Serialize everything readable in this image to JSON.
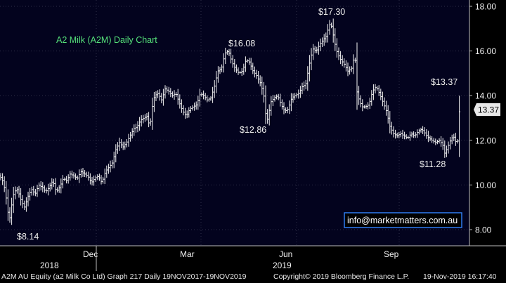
{
  "chart_data": {
    "type": "ohlc",
    "title": "A2 Milk (A2M) Daily Chart",
    "ylim": [
      7.5,
      18.3
    ],
    "y_ticks": [
      "8.00",
      "10.00",
      "12.00",
      "14.00",
      "16.00",
      "18.00"
    ],
    "x_ticks": [
      "Dec",
      "Mar",
      "Jun",
      "Sep"
    ],
    "year_labels": [
      "2018",
      "2019"
    ],
    "last_price": "13.37",
    "annotations": [
      {
        "text": "$8.14",
        "value": 8.14
      },
      {
        "text": "$16.08",
        "value": 16.08
      },
      {
        "text": "$12.86",
        "value": 12.86
      },
      {
        "text": "$17.30",
        "value": 17.3
      },
      {
        "text": "$13.37",
        "value": 13.37
      },
      {
        "text": "$11.28",
        "value": 11.28
      }
    ],
    "watermark": "info@marketmatters.com.au",
    "price_path": [
      [
        0,
        10.4
      ],
      [
        5,
        10.1
      ],
      [
        10,
        9.2
      ],
      [
        13,
        8.3
      ],
      [
        16,
        9.0
      ],
      [
        20,
        9.7
      ],
      [
        25,
        9.8
      ],
      [
        30,
        9.3
      ],
      [
        35,
        9.0
      ],
      [
        40,
        9.5
      ],
      [
        45,
        9.8
      ],
      [
        50,
        9.6
      ],
      [
        55,
        10.0
      ],
      [
        60,
        9.9
      ],
      [
        65,
        9.7
      ],
      [
        70,
        9.9
      ],
      [
        75,
        10.2
      ],
      [
        80,
        9.7
      ],
      [
        85,
        9.9
      ],
      [
        90,
        10.3
      ],
      [
        95,
        10.2
      ],
      [
        100,
        10.5
      ],
      [
        105,
        10.4
      ],
      [
        110,
        10.3
      ],
      [
        115,
        10.6
      ],
      [
        120,
        10.5
      ],
      [
        125,
        10.4
      ],
      [
        130,
        10.1
      ],
      [
        135,
        10.3
      ],
      [
        140,
        10.4
      ],
      [
        145,
        10.1
      ],
      [
        150,
        10.6
      ],
      [
        155,
        10.8
      ],
      [
        160,
        11.0
      ],
      [
        165,
        11.6
      ],
      [
        170,
        11.9
      ],
      [
        175,
        11.7
      ],
      [
        180,
        11.9
      ],
      [
        185,
        12.2
      ],
      [
        190,
        12.5
      ],
      [
        195,
        12.6
      ],
      [
        200,
        12.9
      ],
      [
        205,
        13.0
      ],
      [
        210,
        13.1
      ],
      [
        213,
        12.5
      ],
      [
        216,
        13.4
      ],
      [
        220,
        14.0
      ],
      [
        225,
        14.1
      ],
      [
        230,
        13.8
      ],
      [
        235,
        14.3
      ],
      [
        240,
        14.2
      ],
      [
        245,
        14.0
      ],
      [
        250,
        14.1
      ],
      [
        255,
        13.7
      ],
      [
        260,
        13.3
      ],
      [
        265,
        13.1
      ],
      [
        270,
        13.4
      ],
      [
        275,
        13.5
      ],
      [
        280,
        13.6
      ],
      [
        285,
        14.1
      ],
      [
        290,
        14.0
      ],
      [
        295,
        13.8
      ],
      [
        300,
        13.9
      ],
      [
        305,
        14.4
      ],
      [
        310,
        15.1
      ],
      [
        315,
        15.2
      ],
      [
        320,
        15.9
      ],
      [
        325,
        16.0
      ],
      [
        330,
        15.5
      ],
      [
        335,
        15.2
      ],
      [
        340,
        15.0
      ],
      [
        345,
        15.1
      ],
      [
        350,
        15.6
      ],
      [
        355,
        15.5
      ],
      [
        360,
        15.1
      ],
      [
        365,
        14.9
      ],
      [
        370,
        14.6
      ],
      [
        375,
        14.1
      ],
      [
        378,
        13.2
      ],
      [
        381,
        12.9
      ],
      [
        385,
        13.7
      ],
      [
        390,
        13.9
      ],
      [
        395,
        14.0
      ],
      [
        400,
        13.6
      ],
      [
        405,
        13.3
      ],
      [
        410,
        13.4
      ],
      [
        415,
        13.9
      ],
      [
        420,
        14.0
      ],
      [
        425,
        14.1
      ],
      [
        430,
        14.4
      ],
      [
        435,
        14.5
      ],
      [
        440,
        15.4
      ],
      [
        445,
        16.1
      ],
      [
        450,
        16.0
      ],
      [
        455,
        16.3
      ],
      [
        460,
        16.5
      ],
      [
        465,
        16.7
      ],
      [
        468,
        17.2
      ],
      [
        472,
        17.1
      ],
      [
        476,
        16.4
      ],
      [
        480,
        15.9
      ],
      [
        485,
        15.6
      ],
      [
        490,
        15.4
      ],
      [
        495,
        15.1
      ],
      [
        500,
        15.2
      ],
      [
        505,
        15.9
      ],
      [
        507,
        14.3
      ],
      [
        510,
        13.9
      ],
      [
        515,
        13.5
      ],
      [
        520,
        13.5
      ],
      [
        525,
        13.6
      ],
      [
        530,
        14.2
      ],
      [
        535,
        14.4
      ],
      [
        540,
        14.1
      ],
      [
        545,
        13.7
      ],
      [
        550,
        13.3
      ],
      [
        555,
        12.6
      ],
      [
        560,
        12.3
      ],
      [
        565,
        12.2
      ],
      [
        570,
        12.3
      ],
      [
        575,
        12.2
      ],
      [
        580,
        12.1
      ],
      [
        585,
        12.3
      ],
      [
        590,
        12.2
      ],
      [
        595,
        12.4
      ],
      [
        600,
        12.5
      ],
      [
        605,
        12.3
      ],
      [
        610,
        12.1
      ],
      [
        615,
        12.0
      ],
      [
        620,
        11.9
      ],
      [
        625,
        12.0
      ],
      [
        630,
        11.8
      ],
      [
        633,
        11.4
      ],
      [
        637,
        11.7
      ],
      [
        641,
        12.0
      ],
      [
        645,
        12.2
      ],
      [
        649,
        11.9
      ],
      [
        652,
        12.0
      ],
      [
        654,
        13.6
      ],
      [
        655,
        13.4
      ]
    ]
  },
  "footer": {
    "left": "A2M AU Equity (a2 Milk Co Ltd) Graph 217  Daily 19NOV2017-19NOV2019",
    "copyright": "Copyright© 2019 Bloomberg Finance L.P.",
    "datetime": "19-Nov-2019 16:17:40"
  },
  "colors": {
    "background": "#000000",
    "plot_bg": "#03031e",
    "grid": "#2f2f48",
    "price": "#f4f4f4",
    "title": "#55e07a",
    "text": "#f0f0f0",
    "watermark_border": "#2f7cf0",
    "watermark_text": "#ffffff"
  }
}
